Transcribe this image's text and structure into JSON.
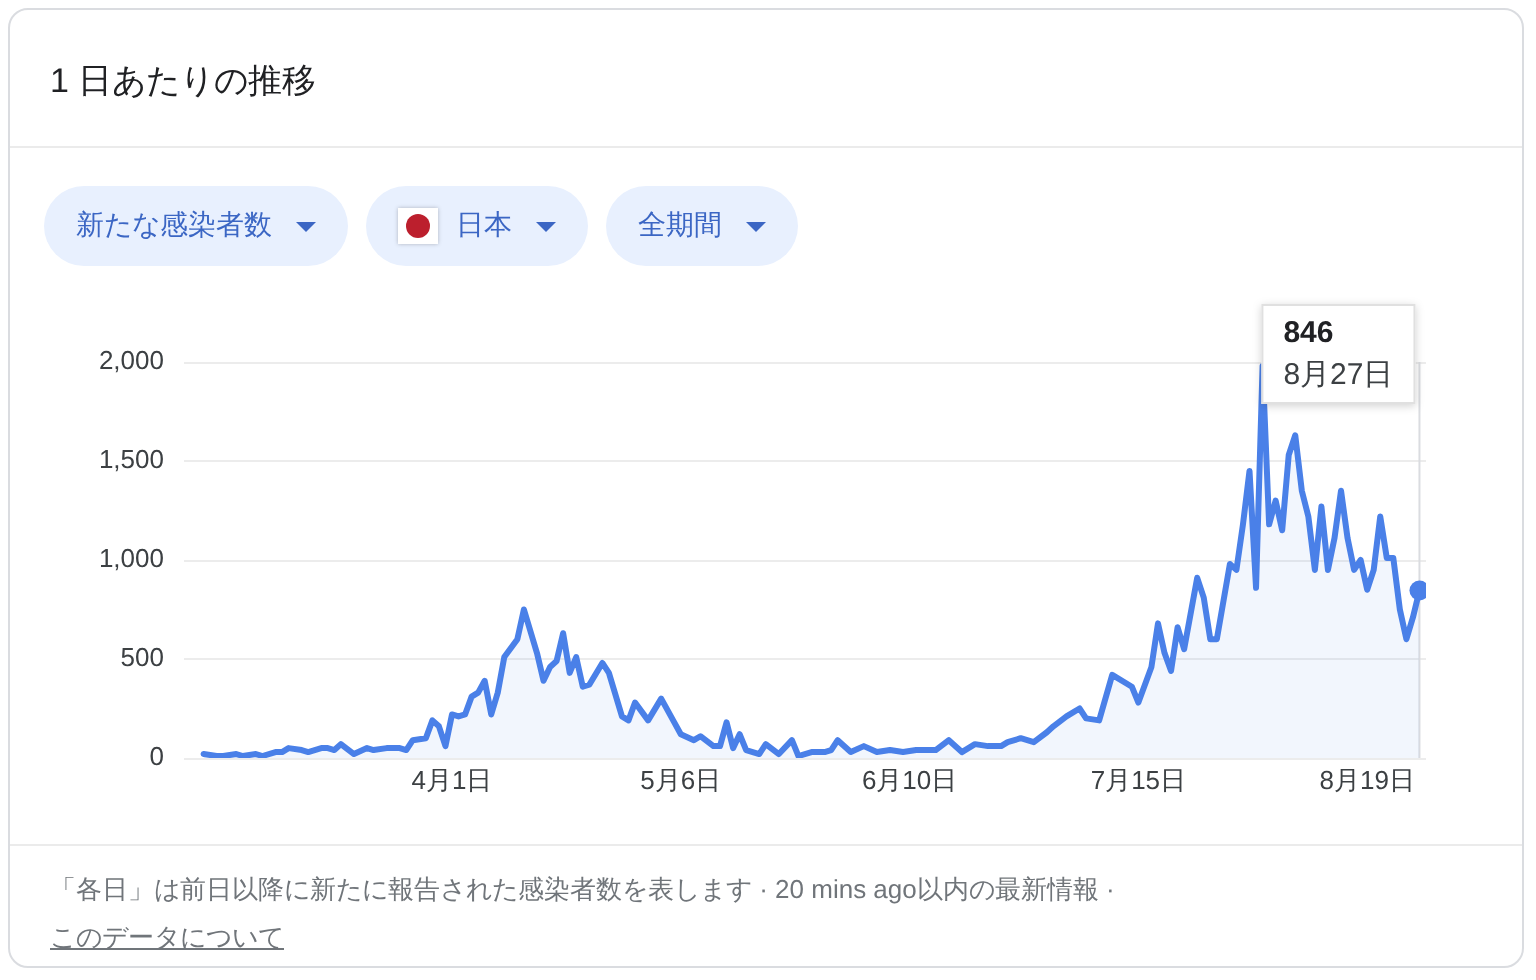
{
  "chart_data": {
    "type": "area",
    "title": "1 日あたりの推移",
    "series": [
      {
        "color": "#4a80e8",
        "x": [
          "--02-23",
          "--02-25",
          "--02-26",
          "--02-28",
          "--02-29",
          "--03-02",
          "--03-03",
          "--03-05",
          "--03-06",
          "--03-07",
          "--03-09",
          "--03-10",
          "--03-12",
          "--03-13",
          "--03-14",
          "--03-15",
          "--03-17",
          "--03-19",
          "--03-20",
          "--03-22",
          "--03-24",
          "--03-25",
          "--03-26",
          "--03-28",
          "--03-29",
          "--03-30",
          "--03-31",
          "--04-01",
          "--04-02",
          "--04-03",
          "--04-04",
          "--04-05",
          "--04-06",
          "--04-07",
          "--04-08",
          "--04-09",
          "--04-11",
          "--04-12",
          "--04-14",
          "--04-15",
          "--04-16",
          "--04-17",
          "--04-18",
          "--04-19",
          "--04-20",
          "--04-21",
          "--04-22",
          "--04-24",
          "--04-25",
          "--04-27",
          "--04-28",
          "--04-29",
          "--05-01",
          "--05-03",
          "--05-05",
          "--05-06",
          "--05-08",
          "--05-09",
          "--05-11",
          "--05-12",
          "--05-13",
          "--05-14",
          "--05-15",
          "--05-16",
          "--05-18",
          "--05-19",
          "--05-21",
          "--05-23",
          "--05-24",
          "--05-26",
          "--05-28",
          "--05-29",
          "--05-30",
          "--06-01",
          "--06-03",
          "--06-05",
          "--06-07",
          "--06-09",
          "--06-11",
          "--06-14",
          "--06-16",
          "--06-18",
          "--06-20",
          "--06-22",
          "--06-24",
          "--06-25",
          "--06-27",
          "--06-28",
          "--06-29",
          "--07-01",
          "--07-02",
          "--07-04",
          "--07-06",
          "--07-07",
          "--07-09",
          "--07-11",
          "--07-13",
          "--07-14",
          "--07-15",
          "--07-17",
          "--07-18",
          "--07-19",
          "--07-20",
          "--07-21",
          "--07-22",
          "--07-24",
          "--07-25",
          "--07-26",
          "--07-27",
          "--07-29",
          "--07-30",
          "--07-31",
          "--08-01",
          "--08-02",
          "--08-03",
          "--08-04",
          "--08-05",
          "--08-06",
          "--08-07",
          "--08-08",
          "--08-09",
          "--08-10",
          "--08-11",
          "--08-12",
          "--08-13",
          "--08-14",
          "--08-15",
          "--08-16",
          "--08-17",
          "--08-18",
          "--08-19",
          "--08-20",
          "--08-21",
          "--08-22",
          "--08-23",
          "--08-24",
          "--08-25",
          "--08-26",
          "--08-27"
        ],
        "values": [
          20,
          10,
          10,
          20,
          10,
          20,
          10,
          30,
          30,
          50,
          40,
          30,
          50,
          50,
          40,
          70,
          20,
          50,
          40,
          50,
          50,
          40,
          90,
          100,
          190,
          160,
          60,
          220,
          210,
          220,
          310,
          330,
          390,
          220,
          330,
          510,
          600,
          750,
          530,
          390,
          460,
          490,
          630,
          430,
          510,
          360,
          370,
          480,
          430,
          210,
          190,
          280,
          190,
          300,
          180,
          120,
          90,
          110,
          60,
          60,
          180,
          50,
          120,
          40,
          20,
          70,
          20,
          90,
          10,
          30,
          30,
          40,
          90,
          30,
          60,
          30,
          40,
          30,
          40,
          40,
          90,
          30,
          70,
          60,
          60,
          80,
          100,
          90,
          80,
          130,
          160,
          210,
          250,
          200,
          190,
          420,
          380,
          360,
          280,
          460,
          680,
          530,
          440,
          660,
          550,
          910,
          810,
          600,
          600,
          980,
          950,
          1180,
          1450,
          860,
          1980,
          1180,
          1300,
          1150,
          1530,
          1630,
          1350,
          1220,
          950,
          1270,
          950,
          1110,
          1350,
          1110,
          950,
          1000,
          850,
          950,
          1220,
          1010,
          1010,
          750,
          600,
          710,
          846
        ]
      },
      {
        "type": "scatter",
        "marker": "circle",
        "color": "#4a80e8",
        "x": [
          "--08-27"
        ],
        "values": [
          846
        ]
      }
    ],
    "xlim": [
      "--02-20",
      "--08-28"
    ],
    "xticks": [
      {
        "value": "--04-01",
        "label": "4月1日"
      },
      {
        "value": "--05-06",
        "label": "5月6日"
      },
      {
        "value": "--06-10",
        "label": "6月10日"
      },
      {
        "value": "--07-15",
        "label": "7月15日"
      },
      {
        "value": "--08-19",
        "label": "8月19日"
      }
    ],
    "ylim": [
      0,
      2000
    ],
    "yticks": [
      0,
      500,
      {
        "value": 1000,
        "label": "1,000"
      },
      {
        "value": 1500,
        "label": "1,500"
      },
      {
        "value": 2000,
        "label": "2,000"
      }
    ],
    "grid": "y",
    "ref_lines": [
      {
        "axis": "x",
        "value": "--08-27",
        "color": "#dadce0"
      }
    ],
    "annotations": [
      "新たな感染者数",
      "日本",
      "全期間",
      "「各日」は前日以降に新たに報告された感染者数を表します · 20 mins ago以内の最新情報 ·",
      "このデータについて",
      "846",
      "8月27日"
    ]
  }
}
